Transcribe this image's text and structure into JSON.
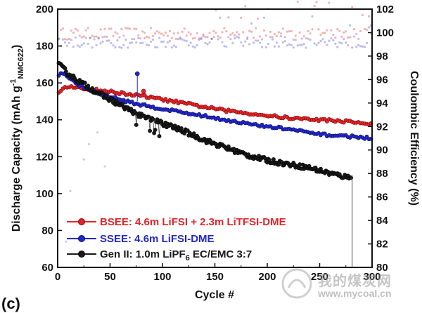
{
  "chart_data": {
    "type": "scatter",
    "x_label": "Cycle #",
    "y_label_left_main": "Discharge Capacity (mAh g",
    "y_label_left_sup": "-1",
    "y_label_left_sub": "NMC622",
    "y_label_left_end": ")",
    "y_label_right": "Coulombic Efficiency (%)",
    "xlim": [
      0,
      300
    ],
    "ylim_left": [
      60,
      200
    ],
    "ylim_right": [
      80,
      102
    ],
    "x_ticks": [
      "0",
      "50",
      "100",
      "150",
      "200",
      "250",
      "300"
    ],
    "y_ticks_left": [
      "60",
      "80",
      "100",
      "120",
      "140",
      "160",
      "180",
      "200"
    ],
    "y_ticks_right": [
      "80",
      "82",
      "84",
      "86",
      "88",
      "90",
      "92",
      "94",
      "96",
      "98",
      "100",
      "102"
    ],
    "legend_position": "bottom-left",
    "series": [
      {
        "name": "BSEE: 4.6m LiFSI + 2.3m LiTFSI-DME",
        "legend": {
          "main": "BSEE: 4.6m LiFSI + 2.3m LiTFSI-DME"
        },
        "color": "#e0262a",
        "capacity": [
          [
            1,
            155
          ],
          [
            5,
            157.5
          ],
          [
            10,
            158
          ],
          [
            20,
            157
          ],
          [
            40,
            156
          ],
          [
            60,
            154.5
          ],
          [
            80,
            153
          ],
          [
            100,
            151
          ],
          [
            130,
            148
          ],
          [
            160,
            145
          ],
          [
            190,
            143
          ],
          [
            220,
            141
          ],
          [
            250,
            140
          ],
          [
            280,
            139
          ],
          [
            300,
            137.5
          ]
        ],
        "ce_level": 99.9
      },
      {
        "name": "SSEE: 4.6m LiFSI-DME",
        "legend": {
          "main": "SSEE: 4.6m LiFSI-DME"
        },
        "color": "#2228c8",
        "capacity": [
          [
            1,
            164
          ],
          [
            5,
            165.5
          ],
          [
            10,
            163
          ],
          [
            20,
            159
          ],
          [
            40,
            154
          ],
          [
            60,
            151
          ],
          [
            80,
            148
          ],
          [
            100,
            146
          ],
          [
            130,
            143
          ],
          [
            160,
            140
          ],
          [
            190,
            137
          ],
          [
            220,
            135
          ],
          [
            250,
            132
          ],
          [
            280,
            131
          ],
          [
            300,
            130
          ]
        ],
        "ce_level": 99.2
      },
      {
        "name": "Gen II: 1.0m LiPF6 EC/EMC 3:7",
        "legend": {
          "main": "Gen II: 1.0m LiPF",
          "sub": "6",
          "tail": " EC/EMC 3:7"
        },
        "color": "#1a1a1a",
        "capacity": [
          [
            1,
            170
          ],
          [
            5,
            168
          ],
          [
            10,
            165
          ],
          [
            20,
            161
          ],
          [
            40,
            154
          ],
          [
            60,
            148
          ],
          [
            80,
            142
          ],
          [
            100,
            138
          ],
          [
            120,
            134
          ],
          [
            140,
            129
          ],
          [
            160,
            125
          ],
          [
            180,
            121
          ],
          [
            200,
            118
          ],
          [
            220,
            116
          ],
          [
            240,
            114
          ],
          [
            260,
            111
          ],
          [
            275,
            109
          ],
          [
            280,
            109.5
          ]
        ]
      }
    ]
  },
  "panel_label": "(c)",
  "watermark": {
    "title": "我的煤炭网",
    "url": "www.mycoal.cn"
  }
}
